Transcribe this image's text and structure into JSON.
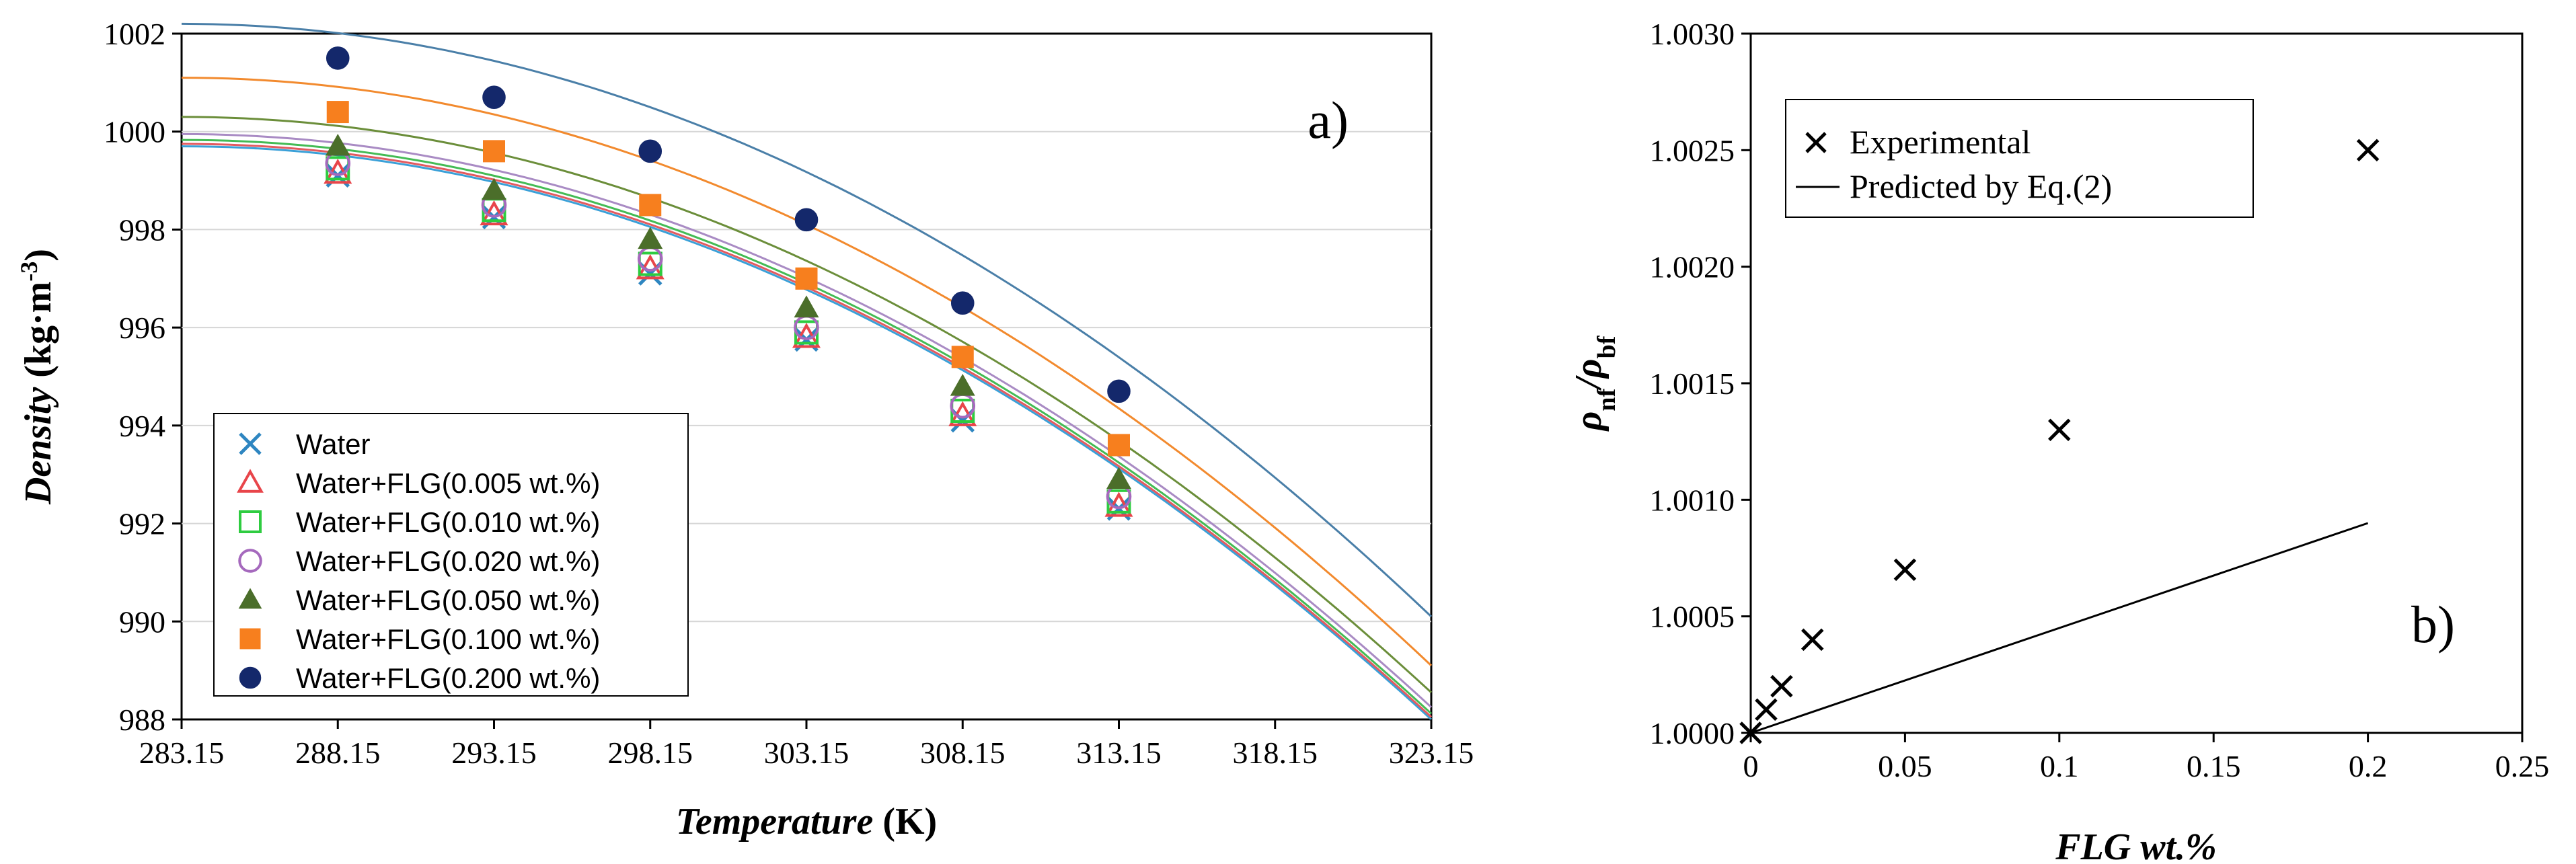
{
  "chart_data": [
    {
      "type": "scatter",
      "panel_label": "a)",
      "xlabel_italic": "Temperature",
      "xlabel_unit": " (K)",
      "ylabel_italic": "Density",
      "ylabel_unit": " (kg·m",
      "ylabel_unit_sup": "-3",
      "ylabel_unit_close": ")",
      "xlim": [
        283.15,
        323.15
      ],
      "ylim": [
        988,
        1002
      ],
      "x_ticks": [
        "283.15",
        "288.15",
        "293.15",
        "298.15",
        "303.15",
        "308.15",
        "313.15",
        "318.15",
        "323.15"
      ],
      "y_ticks": [
        "988",
        "990",
        "992",
        "994",
        "996",
        "998",
        "1000",
        "1002"
      ],
      "x": [
        288.15,
        293.15,
        298.15,
        303.15,
        308.15,
        313.15
      ],
      "legend_position": "bottom-left",
      "series": [
        {
          "name": "Water",
          "marker": "x",
          "color": "#2E86C1",
          "line_color": "#3AA0D8",
          "values": [
            999.1,
            998.25,
            997.1,
            995.75,
            994.1,
            992.3
          ],
          "fit": [
            999.7,
            988.0
          ]
        },
        {
          "name": "Water+FLG(0.005 wt.%)",
          "marker": "triangle-open",
          "color": "#E8454A",
          "line_color": "#E35A5F",
          "values": [
            999.15,
            998.3,
            997.2,
            995.8,
            994.2,
            992.35
          ],
          "fit": [
            999.75,
            988.05
          ]
        },
        {
          "name": "Water+FLG(0.010 wt.%)",
          "marker": "square-open",
          "color": "#2ECC40",
          "line_color": "#44BB55",
          "values": [
            999.25,
            998.4,
            997.3,
            995.9,
            994.3,
            992.45
          ],
          "fit": [
            999.83,
            988.12
          ]
        },
        {
          "name": "Water+FLG(0.020 wt.%)",
          "marker": "circle-open",
          "color": "#A569BD",
          "line_color": "#A98BC4",
          "values": [
            999.35,
            998.5,
            997.4,
            996.0,
            994.4,
            992.55
          ],
          "fit": [
            999.95,
            988.25
          ]
        },
        {
          "name": "Water+FLG(0.050 wt.%)",
          "marker": "triangle",
          "color": "#4B6E2A",
          "line_color": "#6B8E3A",
          "values": [
            999.7,
            998.8,
            997.8,
            996.4,
            994.8,
            992.9
          ],
          "fit": [
            1000.3,
            988.55
          ]
        },
        {
          "name": "Water+FLG(0.100 wt.%)",
          "marker": "square",
          "color": "#F77F1E",
          "line_color": "#F28A2E",
          "values": [
            1000.4,
            999.6,
            998.5,
            997.0,
            995.4,
            993.6
          ],
          "fit": [
            1001.1,
            989.1
          ]
        },
        {
          "name": "Water+FLG(0.200 wt.%)",
          "marker": "circle",
          "color": "#14286B",
          "line_color": "#4A7FA8",
          "values": [
            1001.5,
            1000.7,
            999.6,
            998.2,
            996.5,
            994.7
          ],
          "fit": [
            1002.2,
            990.1
          ]
        }
      ]
    },
    {
      "type": "scatter",
      "panel_label": "b)",
      "xlabel": "FLG wt.%",
      "ylabel_main": "ρ",
      "ylabel_sub1": "nf",
      "ylabel_slash": "/ρ",
      "ylabel_sub2": "bf",
      "xlim": [
        0,
        0.25
      ],
      "ylim": [
        1.0,
        1.003
      ],
      "x_ticks": [
        "0",
        "0.05",
        "0.1",
        "0.15",
        "0.2",
        "0.25"
      ],
      "y_ticks": [
        "1.0000",
        "1.0005",
        "1.0010",
        "1.0015",
        "1.0020",
        "1.0025",
        "1.0030"
      ],
      "legend_position": "top-left",
      "series": [
        {
          "name": "Experimental",
          "marker": "x",
          "color": "#000000",
          "x": [
            0,
            0.005,
            0.01,
            0.02,
            0.05,
            0.1,
            0.2
          ],
          "values": [
            1.0,
            1.0001,
            1.0002,
            1.0004,
            1.0007,
            1.0013,
            1.0025
          ]
        },
        {
          "name": "Predicted by Eq.(2)",
          "marker": "line",
          "color": "#000000",
          "x": [
            0,
            0.2
          ],
          "values": [
            1.0,
            1.0009
          ]
        }
      ]
    }
  ]
}
